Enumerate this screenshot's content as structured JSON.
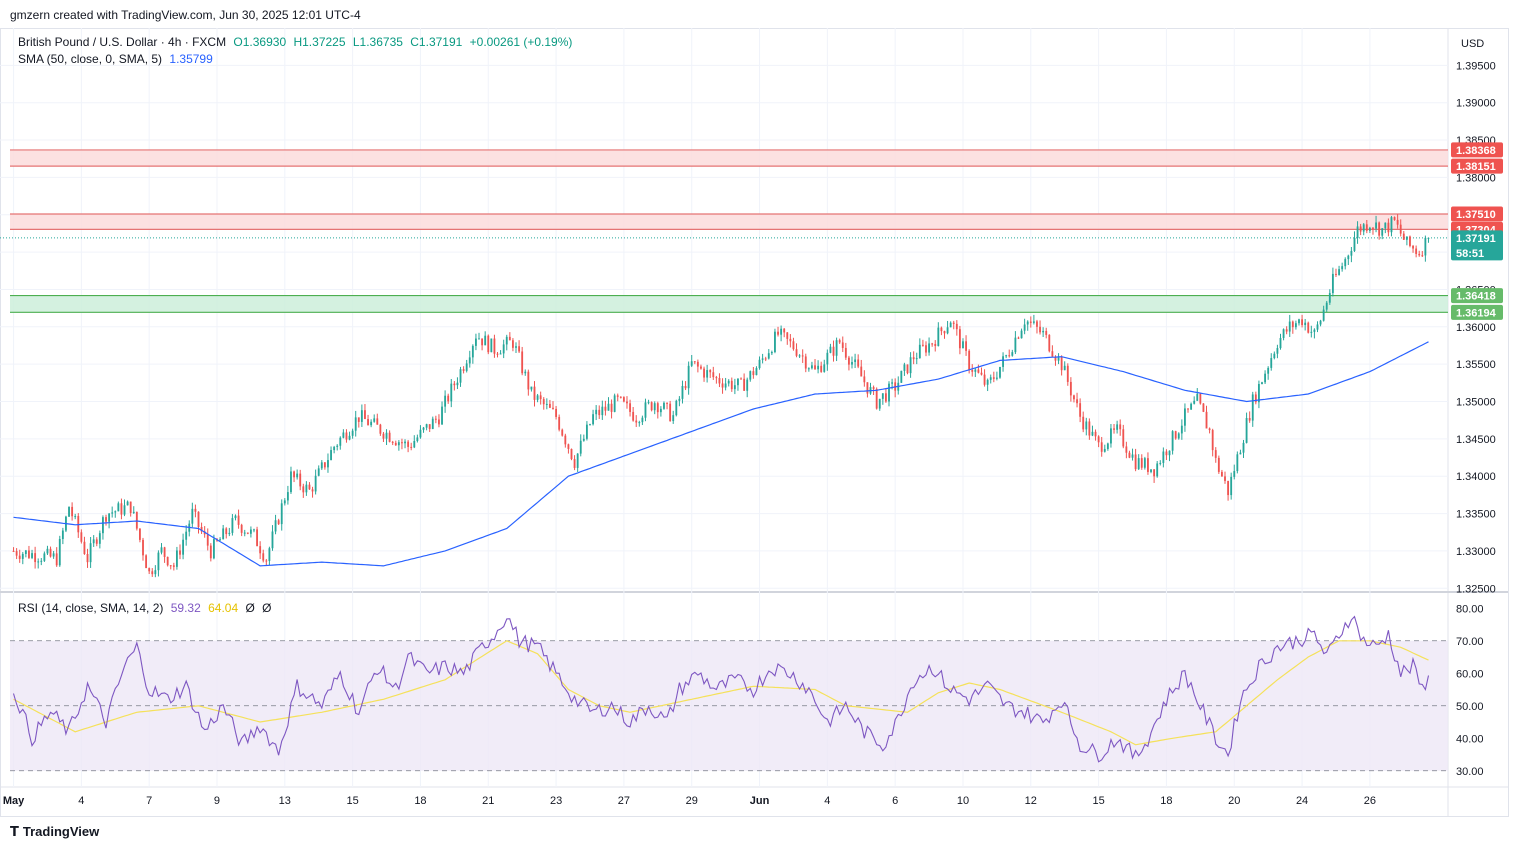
{
  "credit": "gmzern created with TradingView.com, Jun 30, 2025 12:01 UTC-4",
  "footer_brand": "TradingView",
  "currency": "USD",
  "legend": {
    "symbol": "British Pound / U.S. Dollar · 4h · FXCM",
    "open": "O1.36930",
    "high": "H1.37225",
    "low": "L1.36735",
    "close": "C1.37191",
    "change": "+0.00261 (+0.19%)",
    "sma_label": "SMA (50, close, 0, SMA, 5)",
    "sma_value": "1.35799",
    "rsi_label": "RSI (14, close, SMA, 14, 2)",
    "rsi_value": "59.32",
    "rsi_ma_value": "64.04",
    "rsi_extra1": "Ø",
    "rsi_extra2": "Ø"
  },
  "colors": {
    "up": "#26a69a",
    "down": "#ef5350",
    "sma": "#2962ff",
    "rsi": "#7e57c2",
    "rsi_ma": "#f5e15a",
    "resistance_fill": "#fcdcdc",
    "resistance_line": "#e57373",
    "support_fill": "#cdeedb",
    "support_line": "#4caf50",
    "rsi_band": "#ede7f6"
  },
  "price_labels": [
    {
      "text": "1.38368",
      "kind": "resistance"
    },
    {
      "text": "1.38151",
      "kind": "resistance"
    },
    {
      "text": "1.37510",
      "kind": "resistance"
    },
    {
      "text": "1.37304",
      "kind": "resistance"
    },
    {
      "text": "1.37191",
      "kind": "last"
    },
    {
      "text": "1.36418",
      "kind": "support"
    },
    {
      "text": "1.36194",
      "kind": "support"
    }
  ],
  "countdown": "58:51",
  "chart_data": [
    {
      "type": "candlestick",
      "title": "British Pound / U.S. Dollar · 4h · FXCM",
      "ylim": [
        1.3245,
        1.4
      ],
      "y_ticks": [
        "1.39500",
        "1.39000",
        "1.38500",
        "1.38000",
        "1.37500",
        "1.37000",
        "1.36500",
        "1.36000",
        "1.35500",
        "1.35000",
        "1.34500",
        "1.34000",
        "1.33500",
        "1.33000",
        "1.32500"
      ],
      "x_labels": [
        "May",
        "4",
        "7",
        "9",
        "13",
        "15",
        "18",
        "21",
        "23",
        "27",
        "29",
        "Jun",
        "4",
        "6",
        "10",
        "12",
        "15",
        "18",
        "20",
        "24",
        "26"
      ],
      "zones": [
        {
          "kind": "resistance",
          "top": 1.38368,
          "bottom": 1.38151
        },
        {
          "kind": "resistance",
          "top": 1.3751,
          "bottom": 1.37304
        },
        {
          "kind": "support",
          "top": 1.36418,
          "bottom": 1.36194
        }
      ],
      "last_price": 1.37191,
      "close_path_anchors": [
        [
          0,
          1.33
        ],
        [
          14,
          1.329
        ],
        [
          18,
          1.336
        ],
        [
          24,
          1.329
        ],
        [
          30,
          1.335
        ],
        [
          38,
          1.336
        ],
        [
          44,
          1.327
        ],
        [
          48,
          1.33
        ],
        [
          52,
          1.328
        ],
        [
          58,
          1.335
        ],
        [
          64,
          1.33
        ],
        [
          72,
          1.334
        ],
        [
          78,
          1.332
        ],
        [
          82,
          1.329
        ],
        [
          90,
          1.34
        ],
        [
          96,
          1.338
        ],
        [
          104,
          1.344
        ],
        [
          112,
          1.348
        ],
        [
          120,
          1.346
        ],
        [
          128,
          1.344
        ],
        [
          138,
          1.348
        ],
        [
          146,
          1.355
        ],
        [
          150,
          1.359
        ],
        [
          156,
          1.357
        ],
        [
          162,
          1.358
        ],
        [
          168,
          1.351
        ],
        [
          176,
          1.348
        ],
        [
          182,
          1.342
        ],
        [
          188,
          1.348
        ],
        [
          196,
          1.35
        ],
        [
          202,
          1.348
        ],
        [
          208,
          1.35
        ],
        [
          214,
          1.348
        ],
        [
          220,
          1.355
        ],
        [
          228,
          1.353
        ],
        [
          236,
          1.352
        ],
        [
          242,
          1.355
        ],
        [
          248,
          1.359
        ],
        [
          254,
          1.357
        ],
        [
          260,
          1.354
        ],
        [
          268,
          1.358
        ],
        [
          274,
          1.354
        ],
        [
          280,
          1.35
        ],
        [
          286,
          1.352
        ],
        [
          292,
          1.356
        ],
        [
          298,
          1.358
        ],
        [
          304,
          1.361
        ],
        [
          310,
          1.355
        ],
        [
          316,
          1.352
        ],
        [
          322,
          1.356
        ],
        [
          328,
          1.361
        ],
        [
          334,
          1.359
        ],
        [
          340,
          1.355
        ],
        [
          346,
          1.348
        ],
        [
          352,
          1.344
        ],
        [
          358,
          1.346
        ],
        [
          364,
          1.342
        ],
        [
          370,
          1.341
        ],
        [
          376,
          1.345
        ],
        [
          380,
          1.348
        ],
        [
          384,
          1.35
        ],
        [
          388,
          1.346
        ],
        [
          390,
          1.342
        ],
        [
          394,
          1.338
        ],
        [
          398,
          1.344
        ],
        [
          402,
          1.35
        ],
        [
          406,
          1.354
        ],
        [
          410,
          1.358
        ],
        [
          414,
          1.36
        ],
        [
          418,
          1.361
        ],
        [
          422,
          1.359
        ],
        [
          424,
          1.361
        ],
        [
          428,
          1.366
        ],
        [
          432,
          1.369
        ],
        [
          436,
          1.373
        ],
        [
          440,
          1.374
        ],
        [
          444,
          1.373
        ],
        [
          448,
          1.374
        ],
        [
          452,
          1.371
        ],
        [
          456,
          1.37
        ],
        [
          459,
          1.37191
        ]
      ]
    },
    {
      "type": "line",
      "title": "SMA (50, close, 0, SMA, 5)",
      "last_value": 1.35799,
      "anchors": [
        [
          0,
          1.3345
        ],
        [
          20,
          1.3335
        ],
        [
          40,
          1.334
        ],
        [
          60,
          1.333
        ],
        [
          80,
          1.328
        ],
        [
          100,
          1.3285
        ],
        [
          120,
          1.328
        ],
        [
          140,
          1.33
        ],
        [
          160,
          1.333
        ],
        [
          180,
          1.34
        ],
        [
          200,
          1.343
        ],
        [
          220,
          1.346
        ],
        [
          240,
          1.349
        ],
        [
          260,
          1.351
        ],
        [
          280,
          1.3515
        ],
        [
          300,
          1.353
        ],
        [
          320,
          1.3555
        ],
        [
          340,
          1.356
        ],
        [
          360,
          1.354
        ],
        [
          380,
          1.3515
        ],
        [
          400,
          1.35
        ],
        [
          420,
          1.351
        ],
        [
          440,
          1.354
        ],
        [
          459,
          1.35799
        ]
      ]
    },
    {
      "type": "line",
      "title": "RSI (14, close, SMA, 14, 2)",
      "ylim": [
        25,
        85
      ],
      "y_ticks": [
        "80.00",
        "70.00",
        "60.00",
        "50.00",
        "40.00",
        "30.00"
      ],
      "bands": {
        "upper": 70,
        "middle": 50,
        "lower": 30
      },
      "rsi_last": 59.32,
      "rsi_ma_last": 64.04,
      "rsi_anchors": [
        [
          0,
          55
        ],
        [
          6,
          40
        ],
        [
          12,
          48
        ],
        [
          18,
          42
        ],
        [
          24,
          56
        ],
        [
          30,
          45
        ],
        [
          36,
          62
        ],
        [
          40,
          68
        ],
        [
          44,
          55
        ],
        [
          50,
          52
        ],
        [
          56,
          56
        ],
        [
          62,
          42
        ],
        [
          68,
          50
        ],
        [
          74,
          38
        ],
        [
          80,
          44
        ],
        [
          86,
          36
        ],
        [
          92,
          56
        ],
        [
          100,
          50
        ],
        [
          106,
          60
        ],
        [
          112,
          48
        ],
        [
          118,
          62
        ],
        [
          124,
          55
        ],
        [
          128,
          65
        ],
        [
          134,
          60
        ],
        [
          140,
          62
        ],
        [
          146,
          60
        ],
        [
          152,
          68
        ],
        [
          156,
          72
        ],
        [
          160,
          78
        ],
        [
          164,
          70
        ],
        [
          170,
          68
        ],
        [
          176,
          60
        ],
        [
          182,
          52
        ],
        [
          188,
          48
        ],
        [
          194,
          50
        ],
        [
          200,
          45
        ],
        [
          206,
          50
        ],
        [
          212,
          45
        ],
        [
          216,
          55
        ],
        [
          222,
          60
        ],
        [
          228,
          55
        ],
        [
          234,
          58
        ],
        [
          240,
          55
        ],
        [
          246,
          62
        ],
        [
          252,
          60
        ],
        [
          258,
          55
        ],
        [
          264,
          45
        ],
        [
          270,
          50
        ],
        [
          276,
          42
        ],
        [
          282,
          38
        ],
        [
          286,
          44
        ],
        [
          292,
          58
        ],
        [
          298,
          62
        ],
        [
          304,
          55
        ],
        [
          310,
          52
        ],
        [
          316,
          56
        ],
        [
          322,
          50
        ],
        [
          328,
          48
        ],
        [
          334,
          45
        ],
        [
          340,
          52
        ],
        [
          346,
          38
        ],
        [
          352,
          35
        ],
        [
          358,
          40
        ],
        [
          364,
          34
        ],
        [
          368,
          40
        ],
        [
          374,
          52
        ],
        [
          380,
          60
        ],
        [
          386,
          48
        ],
        [
          390,
          40
        ],
        [
          394,
          35
        ],
        [
          398,
          52
        ],
        [
          404,
          62
        ],
        [
          410,
          68
        ],
        [
          416,
          70
        ],
        [
          422,
          72
        ],
        [
          426,
          65
        ],
        [
          430,
          72
        ],
        [
          434,
          78
        ],
        [
          438,
          70
        ],
        [
          442,
          68
        ],
        [
          446,
          72
        ],
        [
          450,
          60
        ],
        [
          454,
          62
        ],
        [
          457,
          55
        ],
        [
          459,
          59.32
        ]
      ],
      "ma_anchors": [
        [
          0,
          52
        ],
        [
          20,
          42
        ],
        [
          40,
          48
        ],
        [
          60,
          50
        ],
        [
          80,
          45
        ],
        [
          100,
          48
        ],
        [
          120,
          52
        ],
        [
          140,
          58
        ],
        [
          150,
          64
        ],
        [
          160,
          70
        ],
        [
          170,
          66
        ],
        [
          180,
          55
        ],
        [
          190,
          50
        ],
        [
          200,
          48
        ],
        [
          220,
          52
        ],
        [
          240,
          56
        ],
        [
          260,
          55
        ],
        [
          270,
          50
        ],
        [
          290,
          48
        ],
        [
          300,
          54
        ],
        [
          310,
          57
        ],
        [
          320,
          55
        ],
        [
          340,
          48
        ],
        [
          356,
          42
        ],
        [
          364,
          38
        ],
        [
          376,
          40
        ],
        [
          390,
          42
        ],
        [
          400,
          50
        ],
        [
          410,
          58
        ],
        [
          420,
          65
        ],
        [
          430,
          70
        ],
        [
          440,
          70
        ],
        [
          450,
          68
        ],
        [
          459,
          64.04
        ]
      ]
    }
  ]
}
